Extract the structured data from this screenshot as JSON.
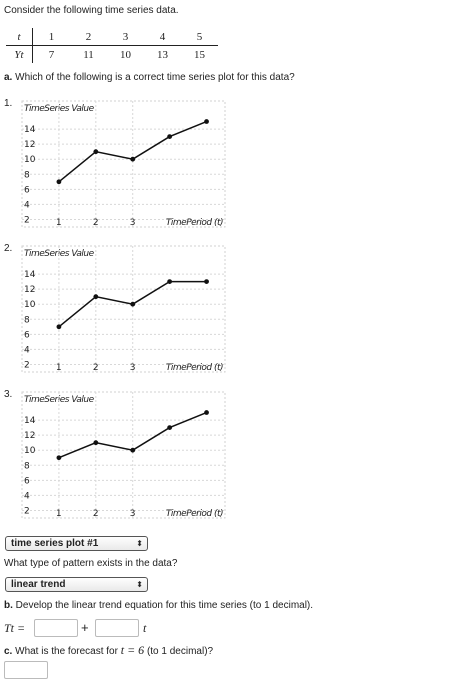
{
  "intro": "Consider the following time series data.",
  "table": {
    "t_label": "t",
    "y_label": "Yt",
    "t_values": [
      "1",
      "2",
      "3",
      "4",
      "5"
    ],
    "y_values": [
      "7",
      "11",
      "10",
      "13",
      "15"
    ]
  },
  "part_a": {
    "letter": "a.",
    "text": "Which of the following is a correct time series plot for this data?"
  },
  "plots": [
    {
      "number": "1.",
      "chart_data": {
        "type": "line",
        "ylabel": "TimeSeries Value",
        "xlabel": "TimePeriod (t)",
        "x": [
          1,
          2,
          3,
          4,
          5
        ],
        "values": [
          7,
          11,
          10,
          13,
          15
        ],
        "y_ticks": [
          "14",
          "12",
          "10",
          "8",
          "6",
          "4",
          "2"
        ],
        "x_ticks": [
          "1",
          "2",
          "3"
        ],
        "ylim": [
          1,
          16
        ],
        "xlim": [
          0,
          5.5
        ],
        "grid": true
      }
    },
    {
      "number": "2.",
      "chart_data": {
        "type": "line",
        "ylabel": "TimeSeries Value",
        "xlabel": "TimePeriod (t)",
        "x": [
          1,
          2,
          3,
          4,
          5
        ],
        "values": [
          7,
          11,
          10,
          13,
          13
        ],
        "y_ticks": [
          "14",
          "12",
          "10",
          "8",
          "6",
          "4",
          "2"
        ],
        "x_ticks": [
          "1",
          "2",
          "3"
        ],
        "ylim": [
          1,
          16
        ],
        "xlim": [
          0,
          5.5
        ],
        "grid": true
      }
    },
    {
      "number": "3.",
      "chart_data": {
        "type": "line",
        "ylabel": "TimeSeries Value",
        "xlabel": "TimePeriod (t)",
        "x": [
          1,
          2,
          3,
          4,
          5
        ],
        "values": [
          9,
          11,
          10,
          13,
          15
        ],
        "y_ticks": [
          "14",
          "12",
          "10",
          "8",
          "6",
          "4",
          "2"
        ],
        "x_ticks": [
          "1",
          "2",
          "3"
        ],
        "ylim": [
          1,
          16
        ],
        "xlim": [
          0,
          5.5
        ],
        "grid": true
      }
    }
  ],
  "plot_select": {
    "value": "time series plot #1",
    "arrow": "⬍"
  },
  "pattern_question": "What type of pattern exists in the data?",
  "pattern_select": {
    "value": "linear trend",
    "arrow": "⬍"
  },
  "part_b": {
    "letter": "b.",
    "text": "Develop the linear trend equation for this time series (to 1 decimal).",
    "lhs": "Tt =",
    "plus": "+",
    "var": "t"
  },
  "part_c": {
    "letter": "c.",
    "text_before": "What is the forecast for",
    "math": "t = 6",
    "text_after": "(to 1 decimal)?"
  }
}
